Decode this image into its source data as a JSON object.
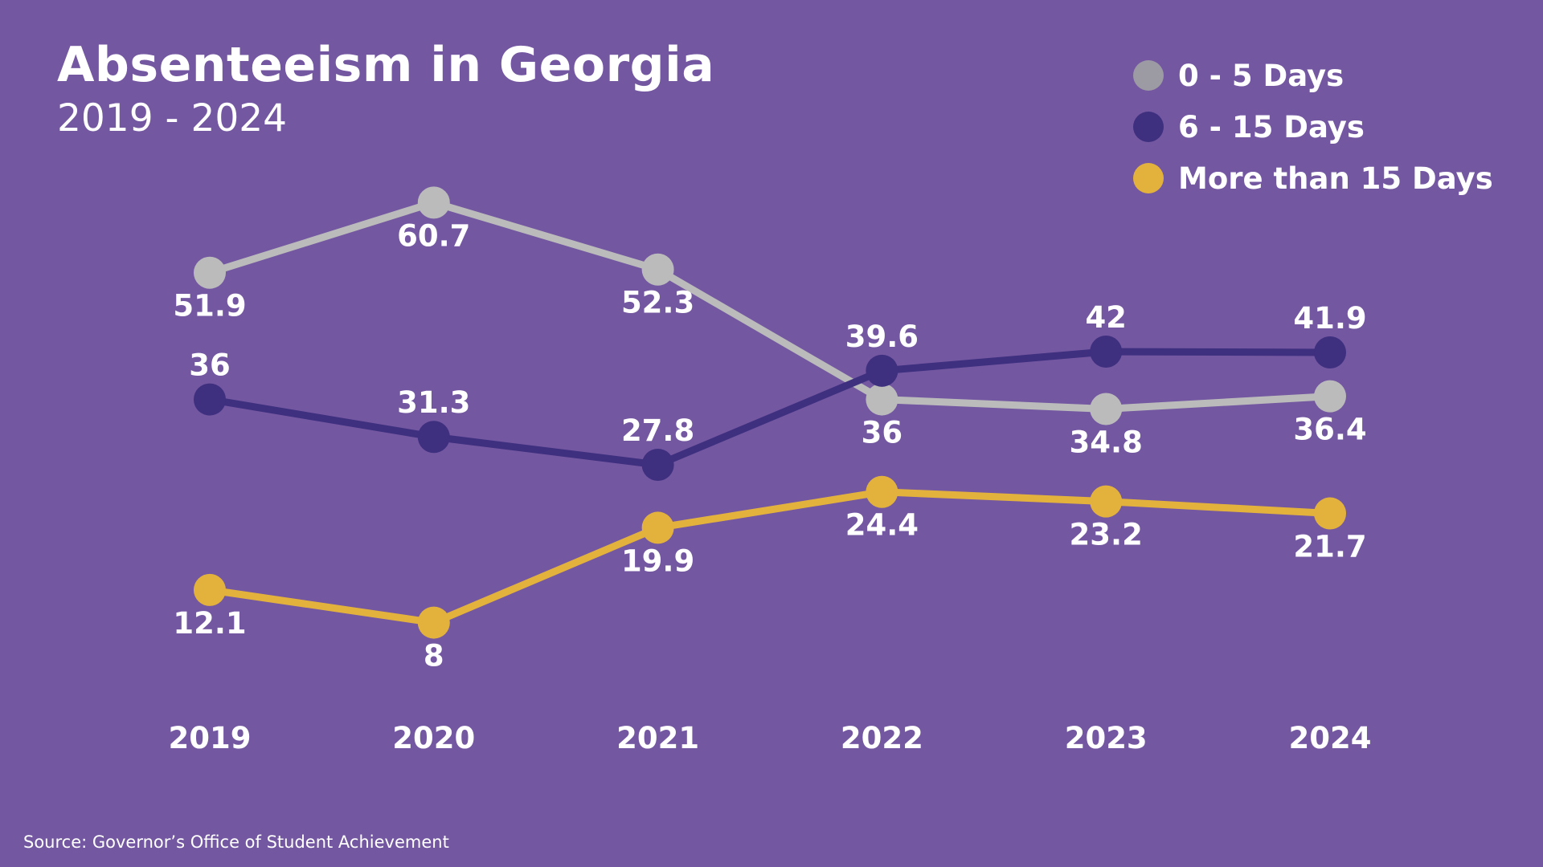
{
  "chart_data": {
    "type": "line",
    "title": "Absenteeism in Georgia",
    "subtitle": "2019 - 2024",
    "x": [
      "2019",
      "2020",
      "2021",
      "2022",
      "2023",
      "2024"
    ],
    "ylim": [
      0,
      70
    ],
    "grid": false,
    "legend_position": "top-right",
    "series": [
      {
        "name": "0 - 5 Days",
        "color": "#bbbbbb",
        "legend_color": "#9c9aa3",
        "values": [
          51.9,
          60.7,
          52.3,
          36,
          34.8,
          36.4
        ],
        "labels": [
          "51.9",
          "60.7",
          "52.3",
          "36",
          "34.8",
          "36.4"
        ],
        "label_side": [
          "below",
          "below",
          "below",
          "below",
          "below",
          "below"
        ]
      },
      {
        "name": "6 - 15 Days",
        "color": "#3e2f7f",
        "legend_color": "#3e2f7f",
        "values": [
          36,
          31.3,
          27.8,
          39.6,
          42,
          41.9
        ],
        "labels": [
          "36",
          "31.3",
          "27.8",
          "39.6",
          "42",
          "41.9"
        ],
        "label_side": [
          "above",
          "above",
          "above",
          "above",
          "above",
          "above"
        ]
      },
      {
        "name": "More than 15 Days",
        "color": "#e3b23c",
        "legend_color": "#e3b23c",
        "values": [
          12.1,
          8,
          19.9,
          24.4,
          23.2,
          21.7
        ],
        "labels": [
          "12.1",
          "8",
          "19.9",
          "24.4",
          "23.2",
          "21.7"
        ],
        "label_side": [
          "below",
          "below",
          "below",
          "below",
          "below",
          "below"
        ]
      }
    ]
  },
  "background_color": "#7357a1",
  "source": "Source: Governor’s Office of Student Achievement"
}
